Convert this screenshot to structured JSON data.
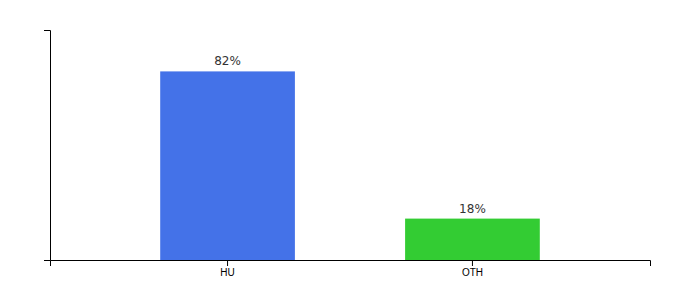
{
  "chart_data": {
    "type": "bar",
    "categories": [
      "HU",
      "OTH"
    ],
    "values": [
      82,
      18
    ],
    "value_labels": [
      "82%",
      "18%"
    ],
    "colors": [
      "#4472e8",
      "#33cc33"
    ],
    "ylim": [
      0,
      100
    ],
    "yticks": [],
    "data_labels": true,
    "tick_labels": "x",
    "grid": false
  }
}
